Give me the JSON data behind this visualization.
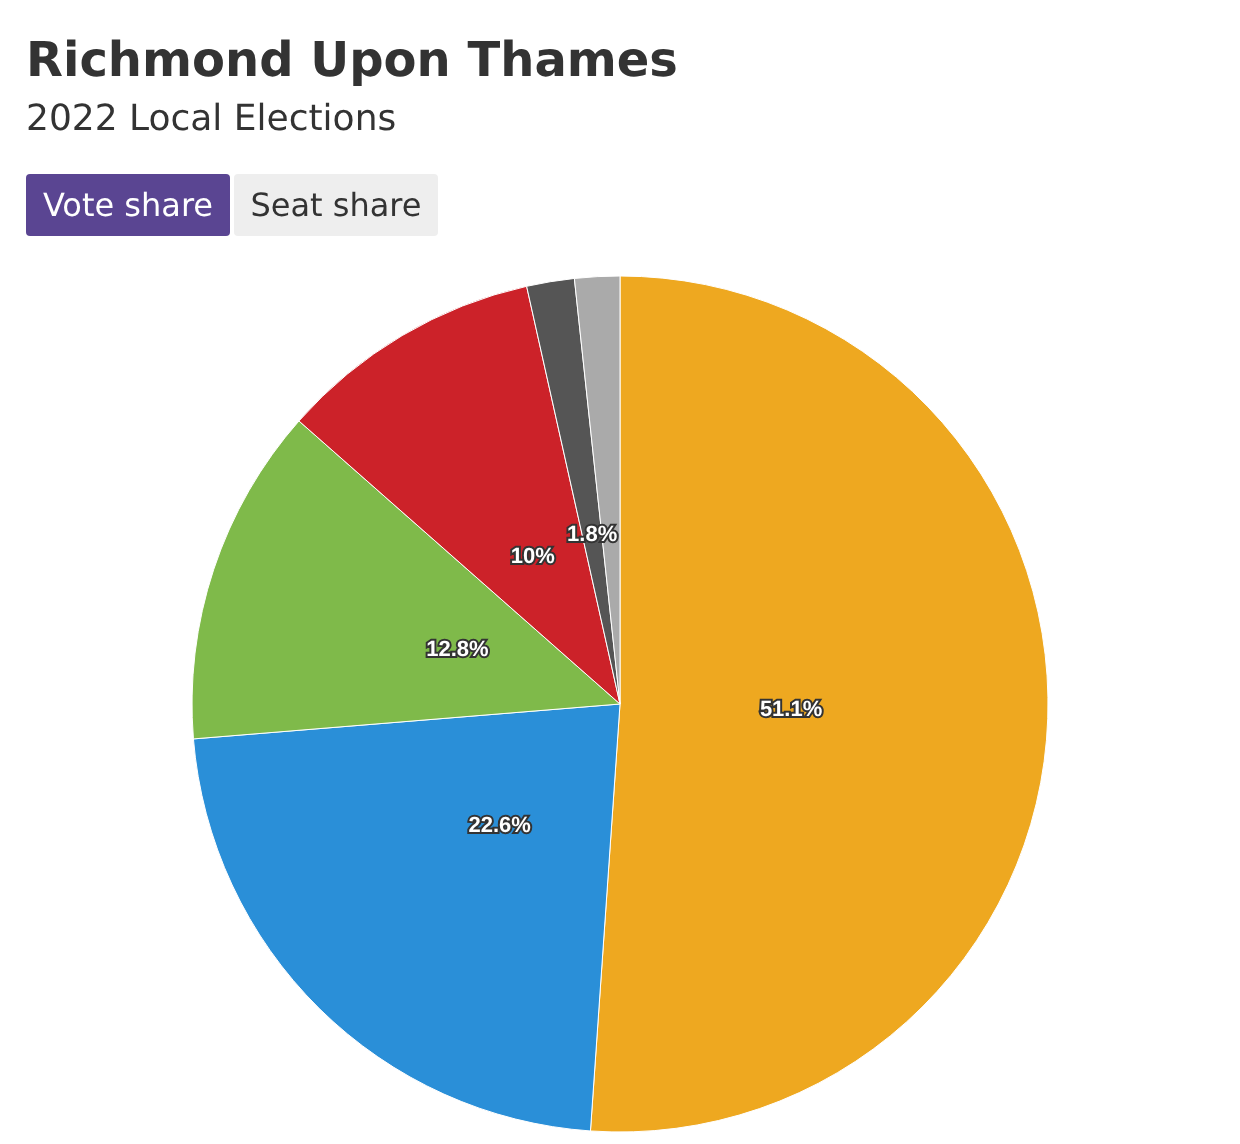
{
  "chart_data": {
    "type": "pie",
    "title": "Richmond Upon Thames",
    "subtitle": "2022 Local Elections",
    "annotations": [
      "Vote share",
      "Seat share"
    ],
    "categories": [
      null,
      null,
      null,
      null,
      null,
      null
    ],
    "values": [
      51.1,
      22.6,
      12.8,
      10,
      1.8,
      1.7
    ],
    "colors": [
      "#eea820",
      "#2a8fd8",
      "#7fba4a",
      "#cc2229",
      "#555555",
      "#aaaaaa"
    ],
    "value_labels": [
      "51.1%",
      "22.6%",
      "12.8%",
      "10%",
      "1.8%",
      null
    ]
  }
}
